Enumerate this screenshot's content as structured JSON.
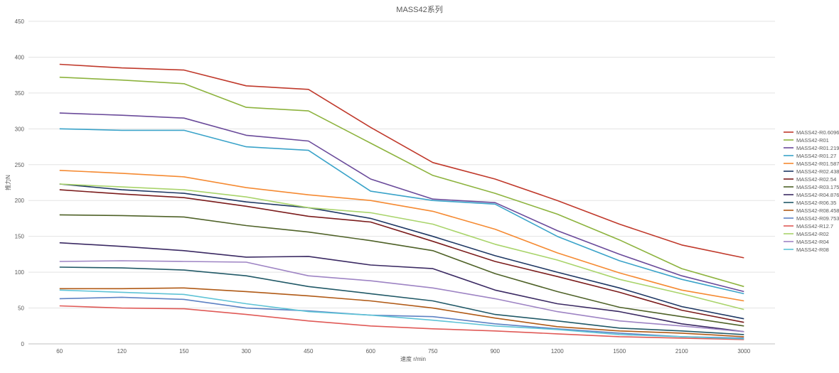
{
  "chart_data": {
    "type": "line",
    "title": "MASS42系列",
    "xlabel": "速度 r/min",
    "ylabel": "推力N",
    "categories": [
      "60",
      "120",
      "150",
      "300",
      "450",
      "600",
      "750",
      "900",
      "1200",
      "1500",
      "2100",
      "3000"
    ],
    "ylim": [
      0,
      450
    ],
    "yticks": [
      0,
      50,
      100,
      150,
      200,
      250,
      300,
      350,
      400,
      450
    ],
    "grid": true,
    "legend_position": "right",
    "series": [
      {
        "name": "MASS42-R0.6096",
        "color": "#c0392b",
        "values": [
          390,
          385,
          382,
          360,
          355,
          302,
          253,
          230,
          200,
          167,
          138,
          120
        ]
      },
      {
        "name": "MASS42-R01",
        "color": "#8db33e",
        "values": [
          372,
          368,
          363,
          330,
          325,
          280,
          235,
          210,
          181,
          145,
          105,
          80
        ]
      },
      {
        "name": "MASS42-R01.2192",
        "color": "#6a4a9a",
        "values": [
          322,
          319,
          315,
          291,
          283,
          230,
          202,
          197,
          158,
          125,
          95,
          73
        ]
      },
      {
        "name": "MASS42-R01.27",
        "color": "#3aa3c9",
        "values": [
          300,
          298,
          298,
          275,
          270,
          213,
          200,
          195,
          150,
          116,
          90,
          70
        ]
      },
      {
        "name": "MASS42-R01.5875",
        "color": "#f58a32",
        "values": [
          242,
          238,
          233,
          218,
          208,
          200,
          185,
          160,
          127,
          99,
          75,
          60
        ]
      },
      {
        "name": "MASS42-R02.4384",
        "color": "#1f3864",
        "values": [
          223,
          215,
          210,
          198,
          190,
          175,
          150,
          123,
          100,
          78,
          52,
          35
        ]
      },
      {
        "name": "MASS42-R02.54",
        "color": "#7b1c1c",
        "values": [
          215,
          209,
          204,
          192,
          178,
          170,
          143,
          115,
          94,
          72,
          47,
          30
        ]
      },
      {
        "name": "MASS42-R03.175",
        "color": "#4f6228",
        "values": [
          180,
          179,
          177,
          165,
          156,
          144,
          130,
          98,
          73,
          51,
          38,
          25
        ]
      },
      {
        "name": "MASS42-R04.8768",
        "color": "#3b2a63",
        "values": [
          141,
          136,
          130,
          121,
          122,
          110,
          105,
          75,
          56,
          45,
          28,
          17
        ]
      },
      {
        "name": "MASS42-R06.35",
        "color": "#215967",
        "values": [
          107,
          106,
          103,
          95,
          80,
          70,
          60,
          41,
          32,
          22,
          18,
          13
        ]
      },
      {
        "name": "MASS42-R08.4582",
        "color": "#b05a16",
        "values": [
          77,
          77,
          78,
          73,
          67,
          60,
          50,
          36,
          24,
          18,
          15,
          10
        ]
      },
      {
        "name": "MASS42-R09.7536",
        "color": "#5e82c4",
        "values": [
          63,
          65,
          62,
          50,
          46,
          40,
          38,
          28,
          21,
          15,
          10,
          8
        ]
      },
      {
        "name": "MASS42-R12.7",
        "color": "#e05a57",
        "values": [
          53,
          50,
          49,
          41,
          32,
          25,
          21,
          18,
          14,
          10,
          8,
          6
        ]
      },
      {
        "name": "MASS42-R02",
        "color": "#a9d46b",
        "values": [
          223,
          219,
          215,
          205,
          190,
          183,
          167,
          139,
          117,
          90,
          70,
          48
        ]
      },
      {
        "name": "MASS42-R04",
        "color": "#9e84c4",
        "values": [
          115,
          116,
          115,
          114,
          95,
          88,
          78,
          63,
          45,
          32,
          25,
          17
        ]
      },
      {
        "name": "MASS42-R08",
        "color": "#5ec3d6",
        "values": [
          75,
          72,
          69,
          56,
          45,
          40,
          33,
          25,
          20,
          13,
          10,
          7
        ]
      }
    ]
  }
}
